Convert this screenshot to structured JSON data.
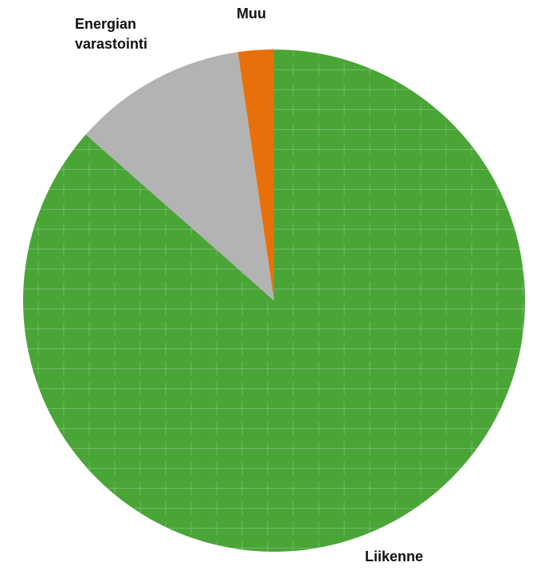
{
  "chart_data": {
    "type": "pie",
    "title": "",
    "labels": [
      "Liikenne",
      "Energian varastointi",
      "Muu"
    ],
    "values": [
      86.5,
      11.2,
      2.3
    ],
    "unit": "%",
    "start_angle_deg": 0,
    "direction": "clockwise",
    "legend": "none",
    "colors": [
      "#4aa537",
      "#b3b3b3",
      "#e8700a"
    ],
    "patterns": [
      "plus-grid",
      "none",
      "none"
    ]
  }
}
